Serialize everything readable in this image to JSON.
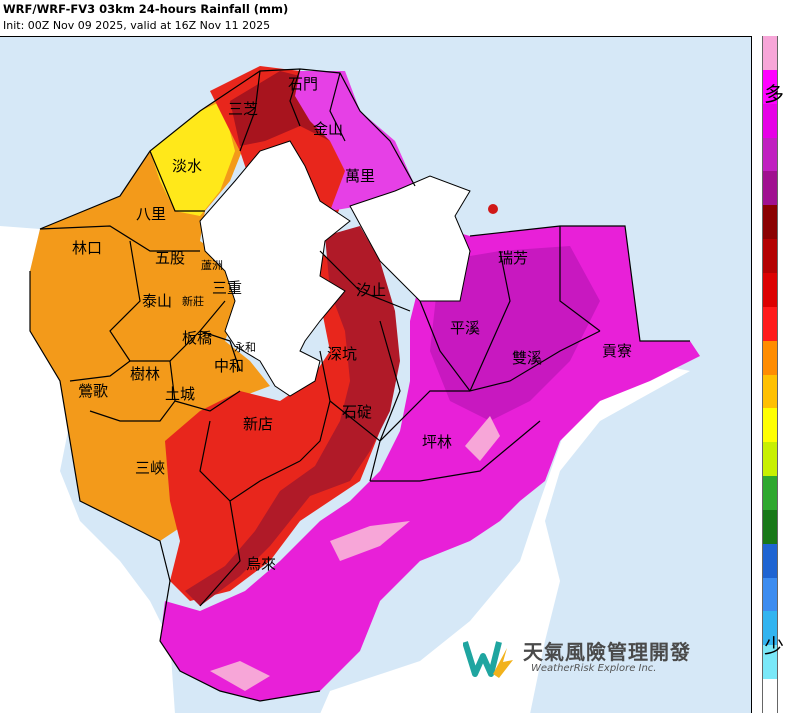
{
  "header": {
    "title": "WRF/WRF-FV3 03km 24-hours Rainfall (mm)",
    "subtitle": "Init: 00Z Nov 09 2025, valid at 16Z Nov 11 2025"
  },
  "colorbar": {
    "top_label": "多",
    "bottom_label": "少",
    "colors_top_to_bottom": [
      "#f7a6d8",
      "#ff00ff",
      "#e600e6",
      "#c020c0",
      "#a01090",
      "#8b0000",
      "#b40000",
      "#dc0000",
      "#ff1a1a",
      "#ff8c00",
      "#ffc000",
      "#ffff00",
      "#c8f000",
      "#2ea82e",
      "#187818",
      "#1e64d2",
      "#3c8cf0",
      "#32b4f0",
      "#7ae8f8",
      "#ffffff"
    ]
  },
  "districts": [
    {
      "name": "石門"
    },
    {
      "name": "三芝"
    },
    {
      "name": "金山"
    },
    {
      "name": "萬里"
    },
    {
      "name": "淡水"
    },
    {
      "name": "八里"
    },
    {
      "name": "林口"
    },
    {
      "name": "五股"
    },
    {
      "name": "蘆洲"
    },
    {
      "name": "泰山"
    },
    {
      "name": "新莊"
    },
    {
      "name": "三重"
    },
    {
      "name": "汐止"
    },
    {
      "name": "瑞芳"
    },
    {
      "name": "平溪"
    },
    {
      "name": "雙溪"
    },
    {
      "name": "貢寮"
    },
    {
      "name": "板橋"
    },
    {
      "name": "永和"
    },
    {
      "name": "中和"
    },
    {
      "name": "深坑"
    },
    {
      "name": "樹林"
    },
    {
      "name": "鶯歌"
    },
    {
      "name": "土城"
    },
    {
      "name": "新店"
    },
    {
      "name": "石碇"
    },
    {
      "name": "坪林"
    },
    {
      "name": "三峽"
    },
    {
      "name": "烏來"
    }
  ],
  "logo": {
    "name_cn": "天氣風險管理開發",
    "name_en": "WeatherRisk Explore Inc."
  }
}
